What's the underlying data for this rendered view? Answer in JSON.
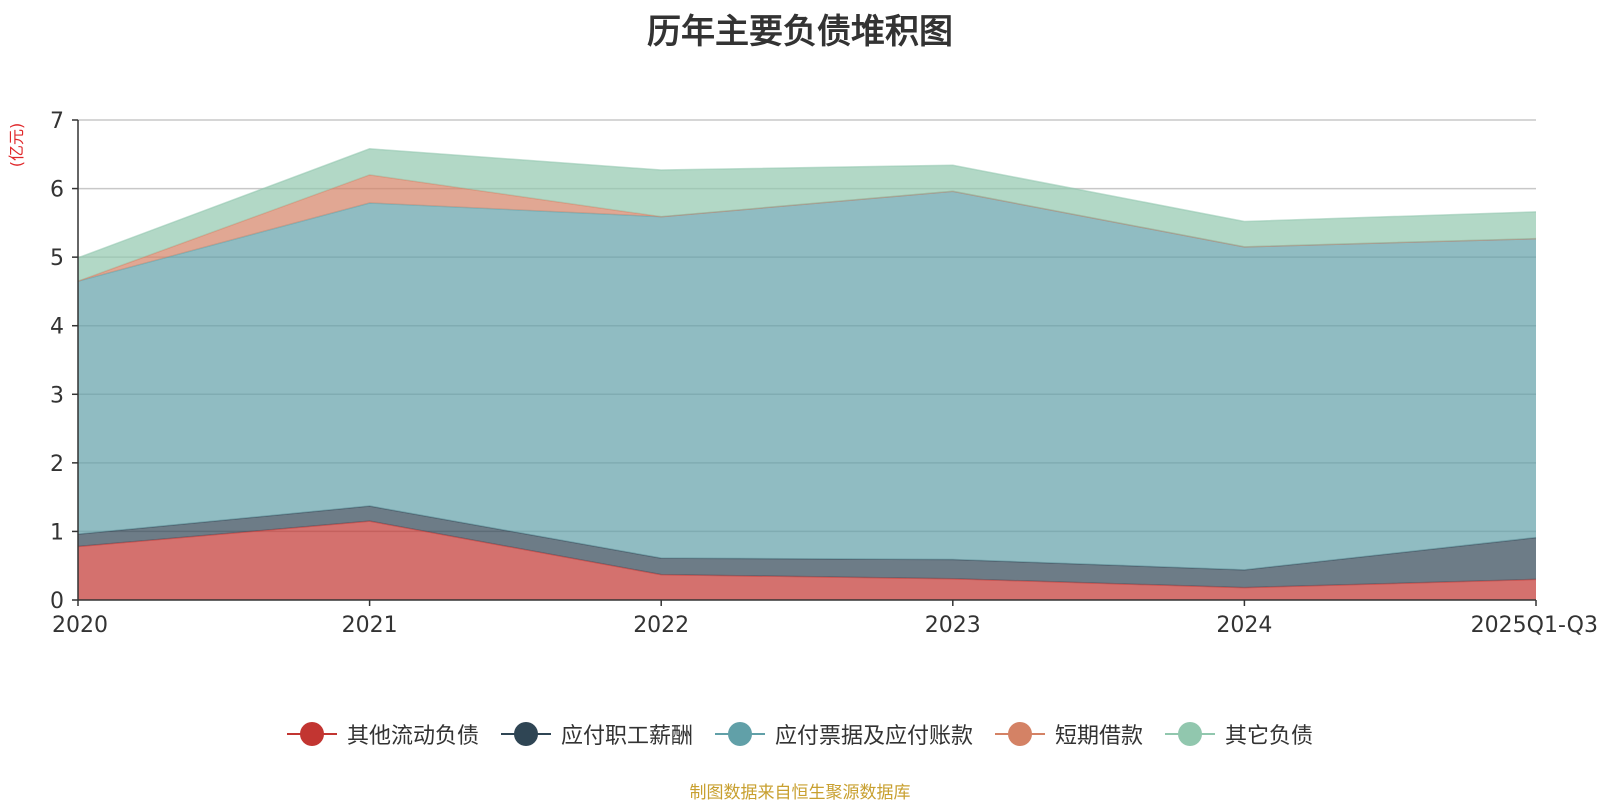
{
  "chart_data": {
    "type": "area",
    "stacked": true,
    "title": "历年主要负债堆积图",
    "ylabel": "(亿元)",
    "xlabel": "",
    "categories": [
      "2020",
      "2021",
      "2022",
      "2023",
      "2024",
      "2025Q1-Q3"
    ],
    "ylim": [
      0,
      7
    ],
    "yticks": [
      0,
      1,
      2,
      3,
      4,
      5,
      6,
      7
    ],
    "grid": true,
    "legend_position": "bottom",
    "series": [
      {
        "name": "其他流动负债",
        "color": "#c23531",
        "values": [
          0.78,
          1.15,
          0.37,
          0.31,
          0.18,
          0.3
        ]
      },
      {
        "name": "应付职工薪酬",
        "color": "#2f4554",
        "values": [
          0.18,
          0.22,
          0.24,
          0.28,
          0.26,
          0.61
        ]
      },
      {
        "name": "应付票据及应付账款",
        "color": "#61a0a8",
        "values": [
          3.69,
          4.42,
          4.98,
          5.37,
          4.71,
          4.36
        ]
      },
      {
        "name": "短期借款",
        "color": "#d48265",
        "values": [
          0.0,
          0.41,
          0.0,
          0.0,
          0.0,
          0.0
        ]
      },
      {
        "name": "其它负债",
        "color": "#91c7ae",
        "values": [
          0.34,
          0.38,
          0.68,
          0.38,
          0.37,
          0.39
        ]
      }
    ],
    "source": "制图数据来自恒生聚源数据库"
  }
}
